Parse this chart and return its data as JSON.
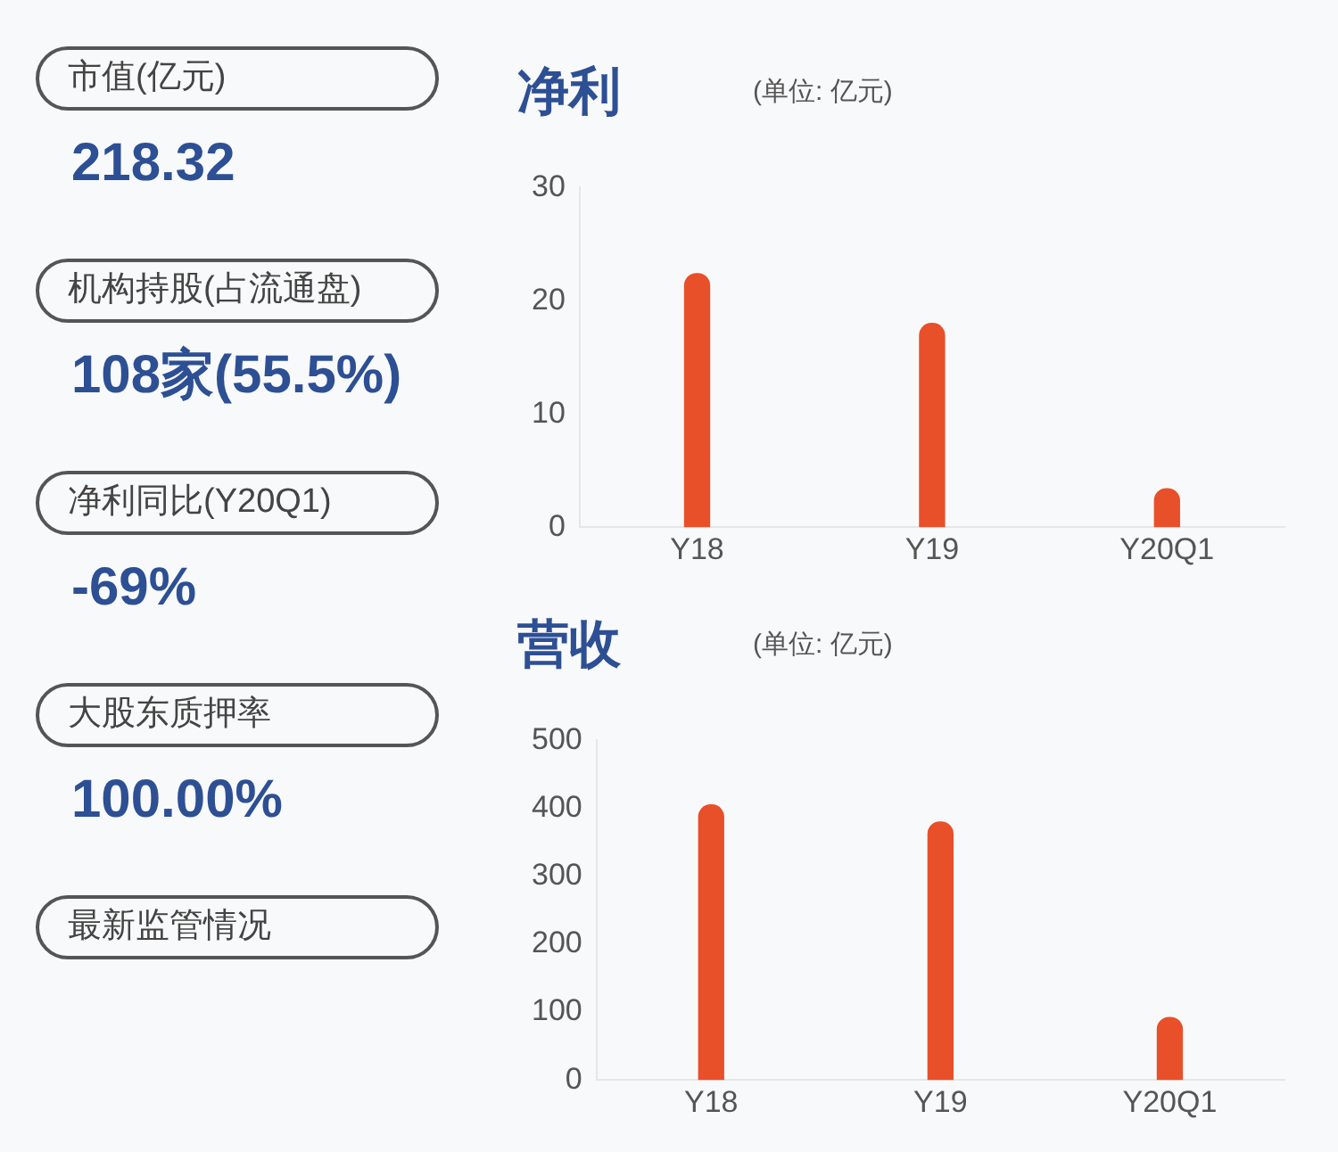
{
  "chart_data": [
    {
      "type": "other",
      "annotations": [
        "市值(亿元)",
        "218.32",
        "机构持股(占流通盘)",
        "108家(55.5%)",
        "净利同比(Y20Q1)",
        "-69%",
        "大股东质押率",
        "100.00%",
        "最新监管情况"
      ]
    },
    {
      "type": "bar",
      "title": "净利",
      "subtitle": "(单位: 亿元)",
      "categories": [
        "Y18",
        "Y19",
        "Y20Q1"
      ],
      "values": [
        22.4,
        18,
        3.4
      ],
      "color": "#e8502a",
      "ylim": [
        0,
        30
      ],
      "yticks": [
        0,
        10,
        20,
        30
      ],
      "grid": false
    },
    {
      "type": "bar",
      "title": "营收",
      "subtitle": "(单位: 亿元)",
      "categories": [
        "Y18",
        "Y19",
        "Y20Q1"
      ],
      "values": [
        405,
        380,
        92
      ],
      "color": "#e8502a",
      "ylim": [
        0,
        500
      ],
      "yticks": [
        0,
        100,
        200,
        300,
        400,
        500
      ],
      "grid": false
    }
  ]
}
